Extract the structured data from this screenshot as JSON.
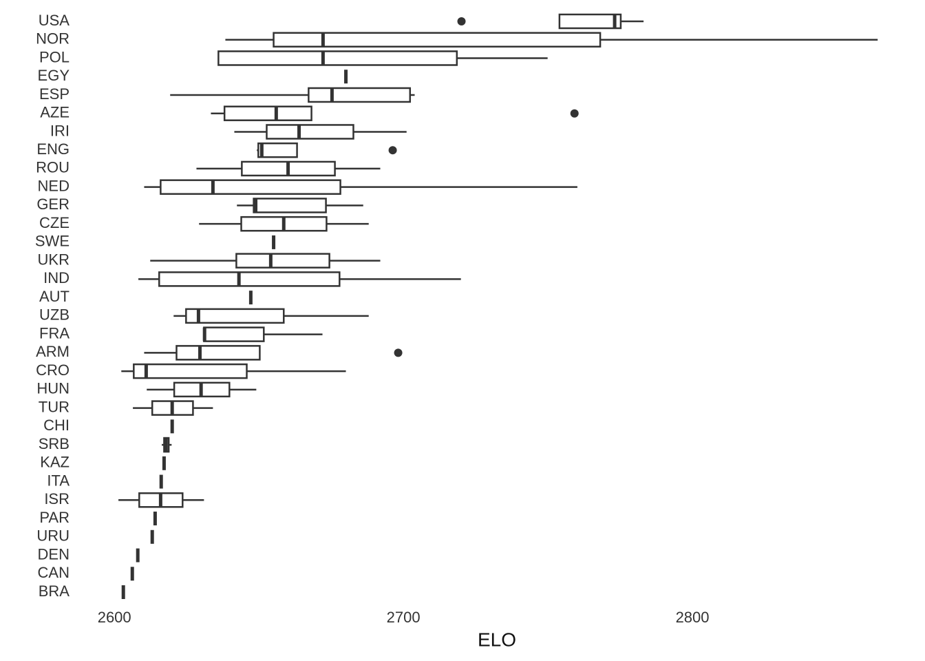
{
  "chart_data": {
    "type": "box",
    "orientation": "horizontal",
    "x_label": "ELO",
    "color": "#333333",
    "categories": [
      "USA",
      "NOR",
      "POL",
      "EGY",
      "ESP",
      "AZE",
      "IRI",
      "ENG",
      "ROU",
      "NED",
      "GER",
      "CZE",
      "SWE",
      "UKR",
      "IND",
      "AUT",
      "UZB",
      "FRA",
      "ARM",
      "CRO",
      "HUN",
      "TUR",
      "CHI",
      "SRB",
      "KAZ",
      "ITA",
      "ISR",
      "PAR",
      "URU",
      "DEN",
      "CAN",
      "BRA"
    ],
    "boxes": [
      {
        "low": 2754.0,
        "q1": 2754.0,
        "median": 2773.1,
        "q3": 2775.2,
        "high": 2783.1,
        "outliers": [
          2720.1
        ]
      },
      {
        "low": 2638.4,
        "q1": 2655.1,
        "median": 2672.2,
        "q3": 2768.1,
        "high": 2864.1
      },
      {
        "low": 2636.0,
        "q1": 2636.0,
        "median": 2672.2,
        "q3": 2718.5,
        "high": 2749.9
      },
      {
        "low": 2680.1,
        "q1": 2680.1,
        "median": 2680.1,
        "q3": 2680.1,
        "high": 2680.1
      },
      {
        "low": 2619.3,
        "q1": 2667.2,
        "median": 2675.3,
        "q3": 2702.3,
        "high": 2703.9
      },
      {
        "low": 2633.4,
        "q1": 2638.1,
        "median": 2656.0,
        "q3": 2668.2,
        "high": 2668.2,
        "outliers": [
          2759.2
        ]
      },
      {
        "low": 2641.5,
        "q1": 2652.7,
        "median": 2663.9,
        "q3": 2682.7,
        "high": 2701.1
      },
      {
        "low": 2649.3,
        "q1": 2649.8,
        "median": 2651.0,
        "q3": 2663.2,
        "high": 2663.2,
        "outliers": [
          2696.3
        ]
      },
      {
        "low": 2628.4,
        "q1": 2644.1,
        "median": 2660.1,
        "q3": 2676.3,
        "high": 2692.0
      },
      {
        "low": 2610.3,
        "q1": 2616.0,
        "median": 2634.1,
        "q3": 2678.2,
        "high": 2760.2
      },
      {
        "low": 2642.4,
        "q1": 2648.2,
        "median": 2648.9,
        "q3": 2673.2,
        "high": 2686.1
      },
      {
        "low": 2629.3,
        "q1": 2643.9,
        "median": 2658.6,
        "q3": 2673.4,
        "high": 2688.0
      },
      {
        "low": 2655.1,
        "q1": 2655.1,
        "median": 2655.1,
        "q3": 2655.1,
        "high": 2655.1
      },
      {
        "low": 2612.4,
        "q1": 2642.2,
        "median": 2654.1,
        "q3": 2674.4,
        "high": 2692.0
      },
      {
        "low": 2608.3,
        "q1": 2615.5,
        "median": 2643.1,
        "q3": 2677.9,
        "high": 2719.9
      },
      {
        "low": 2647.2,
        "q1": 2647.2,
        "median": 2647.2,
        "q3": 2647.2,
        "high": 2647.2
      },
      {
        "low": 2620.5,
        "q1": 2624.8,
        "median": 2629.1,
        "q3": 2658.6,
        "high": 2688.0
      },
      {
        "low": 2631.0,
        "q1": 2631.0,
        "median": 2631.2,
        "q3": 2651.7,
        "high": 2672.0
      },
      {
        "low": 2610.3,
        "q1": 2621.5,
        "median": 2629.6,
        "q3": 2650.3,
        "high": 2650.3,
        "outliers": [
          2698.2
        ]
      },
      {
        "low": 2602.4,
        "q1": 2606.7,
        "median": 2611.0,
        "q3": 2645.8,
        "high": 2680.1
      },
      {
        "low": 2611.2,
        "q1": 2620.7,
        "median": 2630.0,
        "q3": 2639.8,
        "high": 2649.1
      },
      {
        "low": 2606.4,
        "q1": 2613.1,
        "median": 2620.0,
        "q3": 2627.2,
        "high": 2634.1
      },
      {
        "low": 2620.0,
        "q1": 2620.0,
        "median": 2620.0,
        "q3": 2620.0,
        "high": 2620.0
      },
      {
        "low": 2616.4,
        "q1": 2617.2,
        "median": 2617.9,
        "q3": 2618.8,
        "high": 2619.8
      },
      {
        "low": 2617.2,
        "q1": 2617.2,
        "median": 2617.2,
        "q3": 2617.2,
        "high": 2617.2
      },
      {
        "low": 2616.2,
        "q1": 2616.2,
        "median": 2616.2,
        "q3": 2616.2,
        "high": 2616.2
      },
      {
        "low": 2601.4,
        "q1": 2608.6,
        "median": 2616.0,
        "q3": 2623.6,
        "high": 2631.0
      },
      {
        "low": 2614.1,
        "q1": 2614.1,
        "median": 2614.1,
        "q3": 2614.1,
        "high": 2614.1
      },
      {
        "low": 2613.1,
        "q1": 2613.1,
        "median": 2613.1,
        "q3": 2613.1,
        "high": 2613.1
      },
      {
        "low": 2608.1,
        "q1": 2608.1,
        "median": 2608.1,
        "q3": 2608.1,
        "high": 2608.1
      },
      {
        "low": 2606.2,
        "q1": 2606.2,
        "median": 2606.2,
        "q3": 2606.2,
        "high": 2606.2
      },
      {
        "low": 2603.1,
        "q1": 2603.1,
        "median": 2603.1,
        "q3": 2603.1,
        "high": 2603.1
      }
    ],
    "xlim": [
      2589,
      2870
    ],
    "xticks": [
      2600,
      2700,
      2800
    ],
    "grid": false
  }
}
